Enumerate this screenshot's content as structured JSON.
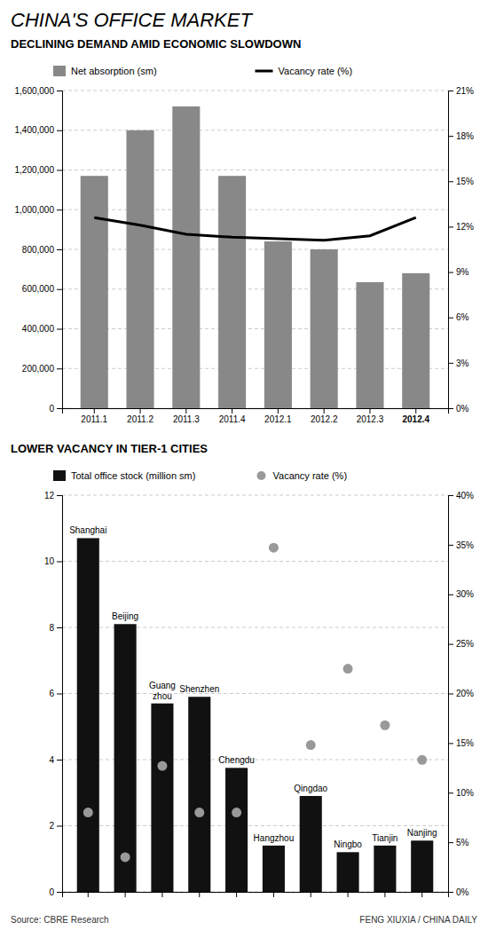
{
  "chart_data": [
    {
      "type": "bar",
      "title": "CHINA'S OFFICE MARKET",
      "subtitle": "DECLINING DEMAND AMID ECONOMIC SLOWDOWN",
      "categories": [
        "2011.1",
        "2011.2",
        "2011.3",
        "2011.4",
        "2012.1",
        "2012.2",
        "2012.3",
        "2012.4"
      ],
      "series": [
        {
          "name": "Net absorption (sm)",
          "type": "bar",
          "color": "#888888",
          "values": [
            1170000,
            1400000,
            1520000,
            1170000,
            840000,
            800000,
            635000,
            680000
          ]
        },
        {
          "name": "Vacancy rate (%)",
          "type": "line",
          "color": "#000000",
          "axis": "y2",
          "values": [
            12.6,
            12.1,
            11.5,
            11.3,
            11.2,
            11.1,
            11.4,
            12.6
          ]
        }
      ],
      "ylim": [
        0,
        1600000
      ],
      "yticks": [
        0,
        {
          "value": 200000,
          "label": "200,000"
        },
        {
          "value": 400000,
          "label": "400,000"
        },
        {
          "value": 600000,
          "label": "600,000"
        },
        {
          "value": 800000,
          "label": "800,000"
        },
        {
          "value": 1000000,
          "label": "1,000,000"
        },
        {
          "value": 1200000,
          "label": "1,200,000"
        },
        {
          "value": 1400000,
          "label": "1,400,000"
        },
        {
          "value": 1600000,
          "label": "1,600,000"
        }
      ],
      "y2lim": [
        0,
        21
      ],
      "y2ticks": [
        {
          "value": 0,
          "label": "0%"
        },
        {
          "value": 3,
          "label": "3%"
        },
        {
          "value": 6,
          "label": "6%"
        },
        {
          "value": 9,
          "label": "9%"
        },
        {
          "value": 12,
          "label": "12%"
        },
        {
          "value": 15,
          "label": "15%"
        },
        {
          "value": 18,
          "label": "18%"
        },
        {
          "value": 21,
          "label": "21%"
        }
      ],
      "grid": true,
      "legend": "top"
    },
    {
      "type": "bar",
      "title": "LOWER VACANCY IN TIER-1 CITIES",
      "categories": [
        "Shanghai",
        "Beijing",
        "Guang\nzhou",
        "Shenzhen",
        "Chengdu",
        "Hangzhou",
        "Qingdao",
        "Ningbo",
        "Tianjin",
        "Nanjing"
      ],
      "series": [
        {
          "name": "Total office stock (million sm)",
          "type": "bar",
          "color": "#111111",
          "values": [
            10.7,
            8.1,
            5.7,
            5.9,
            3.75,
            1.4,
            2.9,
            1.2,
            1.4,
            1.55
          ]
        },
        {
          "name": "Vacancy rate (%)",
          "type": "scatter",
          "color": "#999999",
          "axis": "y2",
          "marker": "circle",
          "values": [
            8.0,
            3.5,
            12.7,
            8.0,
            8.0,
            34.7,
            14.8,
            22.5,
            16.8,
            13.3
          ]
        }
      ],
      "ylim": [
        0,
        12
      ],
      "yticks": [
        0,
        2,
        4,
        6,
        8,
        10,
        12
      ],
      "y2lim": [
        0,
        40
      ],
      "y2ticks": [
        {
          "value": 0,
          "label": "0%"
        },
        {
          "value": 5,
          "label": "5%"
        },
        {
          "value": 10,
          "label": "10%"
        },
        {
          "value": 15,
          "label": "15%"
        },
        {
          "value": 20,
          "label": "20%"
        },
        {
          "value": 25,
          "label": "25%"
        },
        {
          "value": 30,
          "label": "30%"
        },
        {
          "value": 35,
          "label": "35%"
        },
        {
          "value": 40,
          "label": "40%"
        }
      ],
      "grid": true,
      "legend": "top",
      "tick_labels": "y",
      "annotations": [
        "Source: CBRE Research",
        "FENG XIUXIA / CHINA DAILY"
      ]
    }
  ]
}
